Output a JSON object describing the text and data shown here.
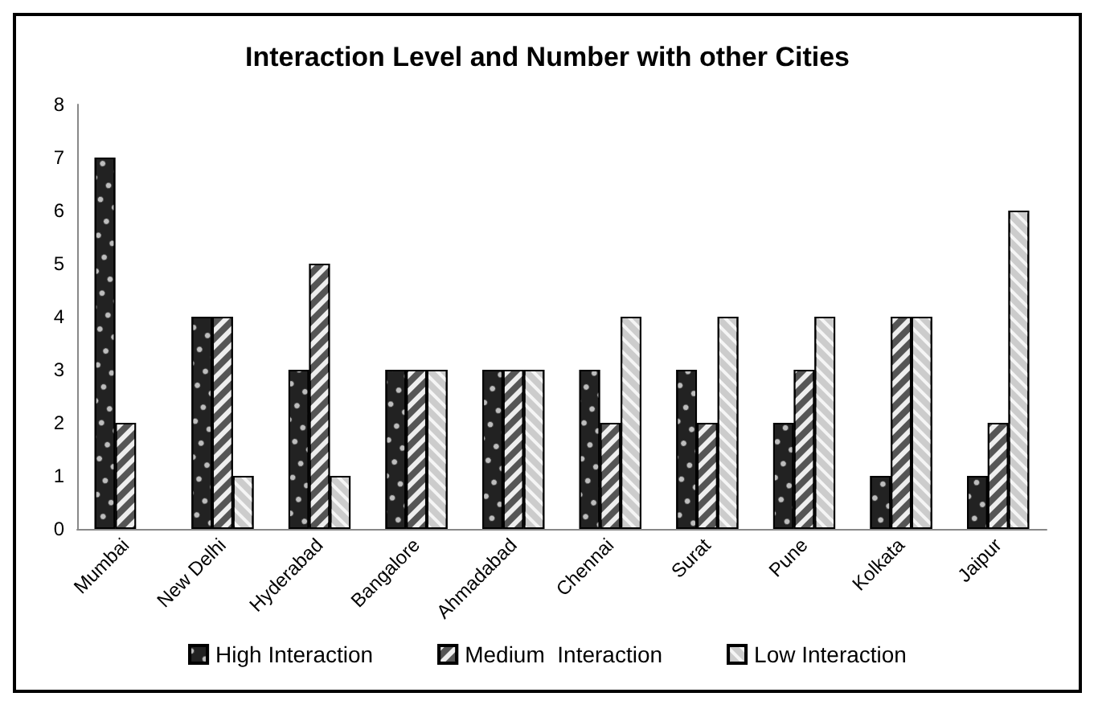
{
  "chart_data": {
    "type": "bar",
    "title": "Interaction Level and Number with other Cities",
    "categories": [
      "Mumbai",
      "New Delhi",
      "Hyderabad",
      "Bangalore",
      "Ahmadabad",
      "Chennai",
      "Surat",
      "Pune",
      "Kolkata",
      "Jaipur"
    ],
    "series": [
      {
        "name": "High Interaction",
        "color": "#222222",
        "values": [
          7,
          4,
          3,
          3,
          3,
          3,
          3,
          2,
          1,
          1
        ]
      },
      {
        "name": "Medium  Interaction",
        "color": "#555555",
        "values": [
          2,
          4,
          5,
          3,
          3,
          2,
          2,
          3,
          4,
          2
        ]
      },
      {
        "name": "Low Interaction",
        "color": "#cccccc",
        "values": [
          0,
          1,
          1,
          3,
          3,
          4,
          4,
          4,
          4,
          6
        ]
      }
    ],
    "ylim": [
      0,
      8
    ],
    "yticks": [
      0,
      1,
      2,
      3,
      4,
      5,
      6,
      7,
      8
    ],
    "grid": false,
    "legend": "bottom"
  }
}
